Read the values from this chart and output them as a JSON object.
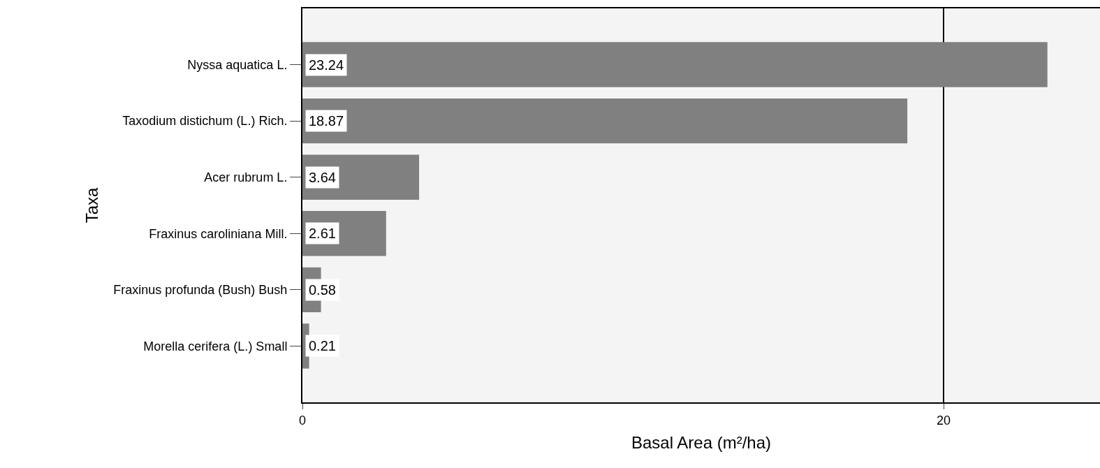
{
  "chart_data": {
    "type": "bar",
    "orientation": "horizontal",
    "xlabel": "Basal Area (m²/ha)",
    "ylabel": "Taxa",
    "categories": [
      "Nyssa aquatica L.",
      "Taxodium distichum (L.) Rich.",
      "Acer rubrum L.",
      "Fraxinus caroliniana Mill.",
      "Fraxinus profunda (Bush) Bush",
      "Morella cerifera (L.) Small"
    ],
    "values": [
      23.24,
      18.87,
      3.64,
      2.61,
      0.58,
      0.21
    ],
    "color": "#808080",
    "xlim": [
      0,
      24.88
    ],
    "xticks": [
      0,
      20
    ],
    "grid": "x",
    "data_labels": true
  }
}
